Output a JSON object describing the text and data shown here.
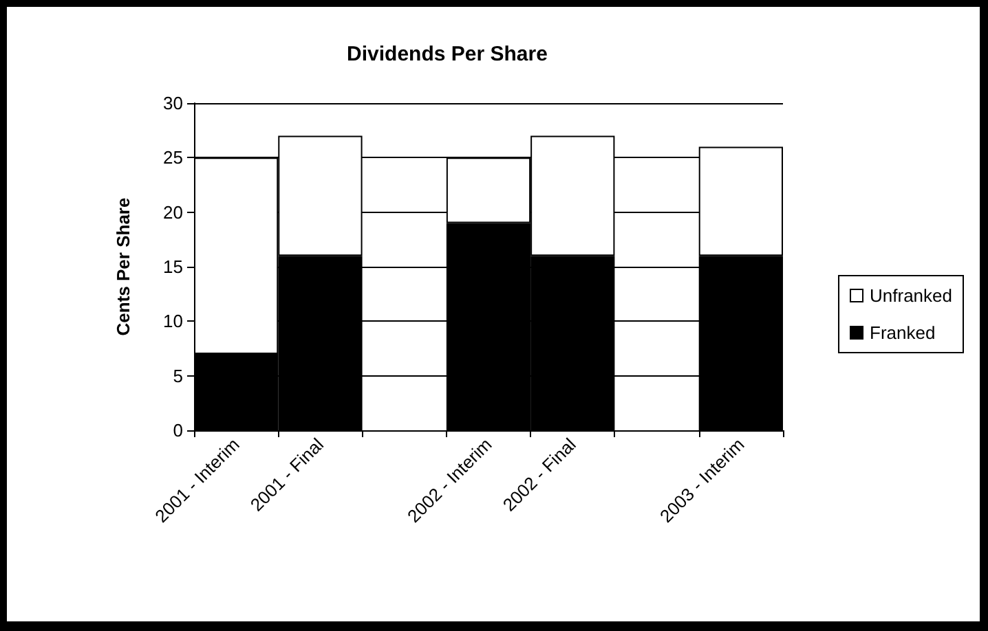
{
  "chart_data": {
    "type": "bar",
    "title": "Dividends Per Share",
    "ylabel": "Cents Per Share",
    "categories": [
      "2001 - Interim",
      "2001 - Final",
      null,
      "2002 - Interim",
      "2002 - Final",
      null,
      "2003 - Interim"
    ],
    "stacked": true,
    "series": [
      {
        "name": "Franked",
        "color": "#000000",
        "values": [
          7,
          16,
          null,
          19,
          16,
          null,
          16
        ]
      },
      {
        "name": "Unfranked",
        "color": "#ffffff",
        "values": [
          18,
          11,
          null,
          6,
          11,
          null,
          10
        ]
      }
    ],
    "ylim": [
      0,
      30
    ],
    "yticks": [
      0,
      5,
      10,
      15,
      20,
      25,
      30
    ],
    "grid": "y",
    "legend": "right"
  }
}
